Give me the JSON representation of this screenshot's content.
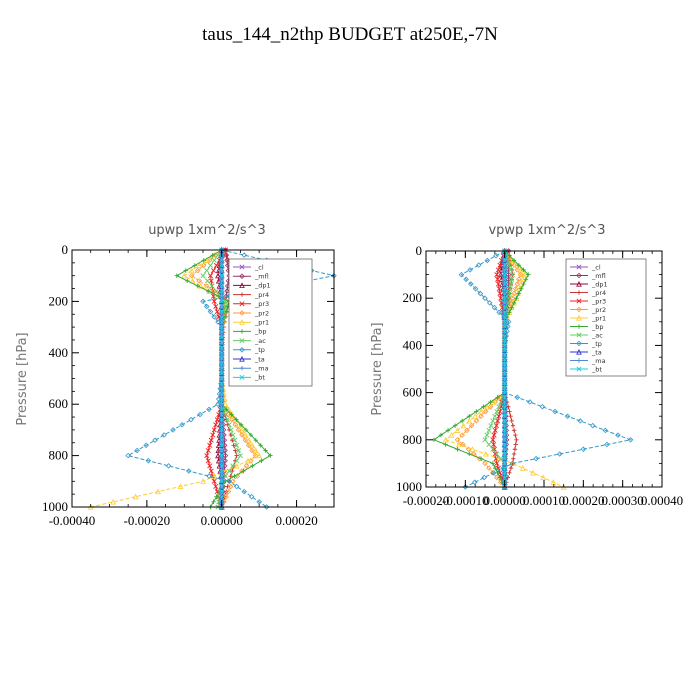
{
  "figure_title": "taus_144_n2thp  BUDGET at250E,-7N",
  "chart_data": [
    {
      "type": "line",
      "title": "upwp   1xm^2/s^3",
      "ylabel": "Pressure [hPa]",
      "xlabel": "",
      "xlim": [
        -0.0004,
        0.0003
      ],
      "ylim": [
        1000,
        0
      ],
      "xticks": [
        -0.0004,
        -0.0002,
        0.0,
        0.0002
      ],
      "xtick_labels": [
        "-0.00040",
        "-0.00020",
        "0.00000",
        "0.00020"
      ],
      "yticks": [
        0,
        200,
        400,
        600,
        800,
        1000
      ],
      "ytick_labels": [
        "0",
        "200",
        "400",
        "600",
        "800",
        "1000"
      ],
      "grid": false,
      "legend_position": "top-right",
      "legend": [
        "_cl",
        "_mfl",
        "_dp1",
        "_pr4",
        "_pr3",
        "_pr2",
        "_pr1",
        "_bp",
        "_ac",
        "_tp",
        "_ta",
        "_ma",
        "_bt"
      ],
      "series": [
        {
          "name": "_cl",
          "color": "#9955bb",
          "x": [
            0,
            0,
            0,
            0,
            0,
            0,
            0,
            0,
            0,
            0
          ],
          "y": [
            0,
            100,
            200,
            300,
            400,
            500,
            600,
            800,
            900,
            1000
          ]
        },
        {
          "name": "_mfl",
          "color": "#993366",
          "x": [
            1e-05,
            2e-05,
            1e-05,
            0,
            0,
            0,
            0,
            1e-05,
            5e-06,
            0
          ],
          "y": [
            0,
            100,
            200,
            300,
            400,
            500,
            600,
            800,
            900,
            1000
          ]
        },
        {
          "name": "_dp1",
          "color": "#990033",
          "x": [
            0,
            -1e-05,
            0,
            0,
            0,
            0,
            0,
            -1e-05,
            0,
            0
          ],
          "y": [
            0,
            100,
            200,
            300,
            400,
            500,
            600,
            800,
            900,
            1000
          ]
        },
        {
          "name": "_pr4",
          "color": "#cc3333",
          "x": [
            1e-05,
            3e-05,
            2e-05,
            5e-06,
            0,
            0,
            0,
            4e-05,
            2e-05,
            0
          ],
          "y": [
            0,
            100,
            200,
            300,
            400,
            500,
            600,
            800,
            900,
            1000
          ]
        },
        {
          "name": "_pr3",
          "color": "#ee2222",
          "x": [
            1e-05,
            -3e-05,
            -2e-05,
            0,
            0,
            0,
            0,
            -4e-05,
            -2e-05,
            0
          ],
          "y": [
            0,
            100,
            200,
            300,
            400,
            500,
            600,
            800,
            900,
            1000
          ]
        },
        {
          "name": "_pr2",
          "color": "#ff9933",
          "x": [
            0,
            -8e-05,
            2e-05,
            0,
            0,
            0,
            0,
            9e-05,
            3e-05,
            0
          ],
          "y": [
            0,
            100,
            200,
            300,
            400,
            500,
            600,
            800,
            900,
            1000
          ]
        },
        {
          "name": "_pr1",
          "color": "#ffcc33",
          "x": [
            0,
            -0.0001,
            1e-05,
            0,
            0,
            0,
            1e-05,
            0.0001,
            -5e-05,
            -0.00035
          ],
          "y": [
            0,
            100,
            200,
            300,
            400,
            500,
            600,
            800,
            900,
            1000
          ]
        },
        {
          "name": "_bp",
          "color": "#33aa33",
          "x": [
            0,
            -0.00012,
            2e-05,
            0,
            0,
            0,
            0,
            0.00013,
            1e-05,
            -3e-05
          ],
          "y": [
            0,
            100,
            200,
            300,
            400,
            500,
            600,
            800,
            900,
            1000
          ]
        },
        {
          "name": "_ac",
          "color": "#66cc66",
          "x": [
            0,
            -5e-05,
            1e-05,
            0,
            0,
            0,
            0,
            5e-05,
            0,
            -1e-05
          ],
          "y": [
            0,
            100,
            200,
            300,
            400,
            500,
            600,
            800,
            900,
            1000
          ]
        },
        {
          "name": "_tp",
          "color": "#3399cc",
          "x": [
            0,
            0.0003,
            -5e-05,
            0,
            0,
            0,
            -1e-05,
            -0.00025,
            2e-05,
            0.00012
          ],
          "y": [
            0,
            100,
            200,
            300,
            400,
            500,
            600,
            800,
            900,
            1000
          ]
        },
        {
          "name": "_ta",
          "color": "#3333cc",
          "x": [
            0,
            0,
            0,
            0,
            0,
            0,
            0,
            0,
            0,
            0
          ],
          "y": [
            0,
            100,
            200,
            300,
            400,
            500,
            600,
            800,
            900,
            1000
          ]
        },
        {
          "name": "_ma",
          "color": "#5588cc",
          "x": [
            0,
            0,
            0,
            0,
            0,
            0,
            0,
            0,
            0,
            0
          ],
          "y": [
            0,
            100,
            200,
            300,
            400,
            500,
            600,
            800,
            900,
            1000
          ]
        },
        {
          "name": "_bt",
          "color": "#22ccdd",
          "x": [
            0,
            0,
            0,
            0,
            0,
            0,
            0,
            0,
            0,
            0
          ],
          "y": [
            0,
            100,
            200,
            300,
            400,
            500,
            600,
            800,
            900,
            1000
          ]
        }
      ]
    },
    {
      "type": "line",
      "title": "vpwp   1xm^2/s^3",
      "ylabel": "Pressure [hPa]",
      "xlabel": "",
      "xlim": [
        -0.0002,
        0.0004
      ],
      "ylim": [
        1000,
        0
      ],
      "xticks": [
        -0.0002,
        -0.0001,
        0.0,
        0.0001,
        0.0002,
        0.0003,
        0.0004
      ],
      "xtick_labels": [
        "-0.00020",
        "-0.00010",
        "0.00000",
        "0.00010",
        "0.00020",
        "0.00030",
        "0.00040"
      ],
      "yticks": [
        0,
        200,
        400,
        600,
        800,
        1000
      ],
      "ytick_labels": [
        "0",
        "200",
        "400",
        "600",
        "800",
        "1000"
      ],
      "grid": false,
      "legend_position": "top-right",
      "legend": [
        "_cl",
        "_mfl",
        "_dp1",
        "_pr4",
        "_pr3",
        "_pr2",
        "_pr1",
        "_bp",
        "_ac",
        "_tp",
        "_ta",
        "_ma",
        "_bt"
      ],
      "series": [
        {
          "name": "_cl",
          "color": "#9955bb",
          "x": [
            0,
            0,
            0,
            0,
            0,
            0,
            0,
            0,
            0,
            0
          ],
          "y": [
            0,
            100,
            200,
            300,
            400,
            500,
            600,
            800,
            900,
            1000
          ]
        },
        {
          "name": "_mfl",
          "color": "#993366",
          "x": [
            1e-05,
            1e-05,
            1e-05,
            0,
            0,
            0,
            0,
            5e-06,
            0,
            0
          ],
          "y": [
            0,
            100,
            200,
            300,
            400,
            500,
            600,
            800,
            900,
            1000
          ]
        },
        {
          "name": "_dp1",
          "color": "#990033",
          "x": [
            0,
            -1e-05,
            0,
            0,
            0,
            0,
            0,
            0,
            0,
            0
          ],
          "y": [
            0,
            100,
            200,
            300,
            400,
            500,
            600,
            800,
            900,
            1000
          ]
        },
        {
          "name": "_pr4",
          "color": "#cc3333",
          "x": [
            1e-05,
            2e-05,
            1e-05,
            0,
            0,
            0,
            0,
            3e-05,
            2e-05,
            0
          ],
          "y": [
            0,
            100,
            200,
            300,
            400,
            500,
            600,
            800,
            900,
            1000
          ]
        },
        {
          "name": "_pr3",
          "color": "#ee2222",
          "x": [
            0,
            -2e-05,
            -1e-05,
            0,
            0,
            0,
            0,
            -3e-05,
            -2e-05,
            0
          ],
          "y": [
            0,
            100,
            200,
            300,
            400,
            500,
            600,
            800,
            900,
            1000
          ]
        },
        {
          "name": "_pr2",
          "color": "#ff9933",
          "x": [
            0,
            4e-05,
            2e-05,
            0,
            0,
            0,
            0,
            -0.00012,
            -5e-05,
            0
          ],
          "y": [
            0,
            100,
            200,
            300,
            400,
            500,
            600,
            800,
            900,
            1000
          ]
        },
        {
          "name": "_pr1",
          "color": "#ffcc33",
          "x": [
            0,
            5e-05,
            3e-05,
            0,
            0,
            0,
            0,
            -0.00015,
            2e-05,
            0.00015
          ],
          "y": [
            0,
            100,
            200,
            300,
            400,
            500,
            600,
            800,
            900,
            1000
          ]
        },
        {
          "name": "_bp",
          "color": "#33aa33",
          "x": [
            0,
            6e-05,
            3e-05,
            0,
            0,
            0,
            0,
            -0.00018,
            -3e-05,
            0
          ],
          "y": [
            0,
            100,
            200,
            300,
            400,
            500,
            600,
            800,
            900,
            1000
          ]
        },
        {
          "name": "_ac",
          "color": "#66cc66",
          "x": [
            0,
            2e-05,
            1e-05,
            0,
            0,
            0,
            0,
            -5e-05,
            0,
            0
          ],
          "y": [
            0,
            100,
            200,
            300,
            400,
            500,
            600,
            800,
            900,
            1000
          ]
        },
        {
          "name": "_tp",
          "color": "#3399cc",
          "x": [
            0,
            -0.00011,
            -5e-05,
            1e-05,
            0,
            0,
            0,
            0.00032,
            2e-05,
            -0.0001
          ],
          "y": [
            0,
            100,
            200,
            300,
            400,
            500,
            600,
            800,
            900,
            1000
          ]
        },
        {
          "name": "_ta",
          "color": "#3333cc",
          "x": [
            0,
            0,
            0,
            0,
            0,
            0,
            0,
            0,
            0,
            0
          ],
          "y": [
            0,
            100,
            200,
            300,
            400,
            500,
            600,
            800,
            900,
            1000
          ]
        },
        {
          "name": "_ma",
          "color": "#5588cc",
          "x": [
            0,
            0,
            0,
            0,
            0,
            0,
            0,
            0,
            0,
            0
          ],
          "y": [
            0,
            100,
            200,
            300,
            400,
            500,
            600,
            800,
            900,
            1000
          ]
        },
        {
          "name": "_bt",
          "color": "#22ccdd",
          "x": [
            0,
            0,
            0,
            0,
            0,
            0,
            0,
            0,
            0,
            0
          ],
          "y": [
            0,
            100,
            200,
            300,
            400,
            500,
            600,
            800,
            900,
            1000
          ]
        }
      ]
    }
  ]
}
